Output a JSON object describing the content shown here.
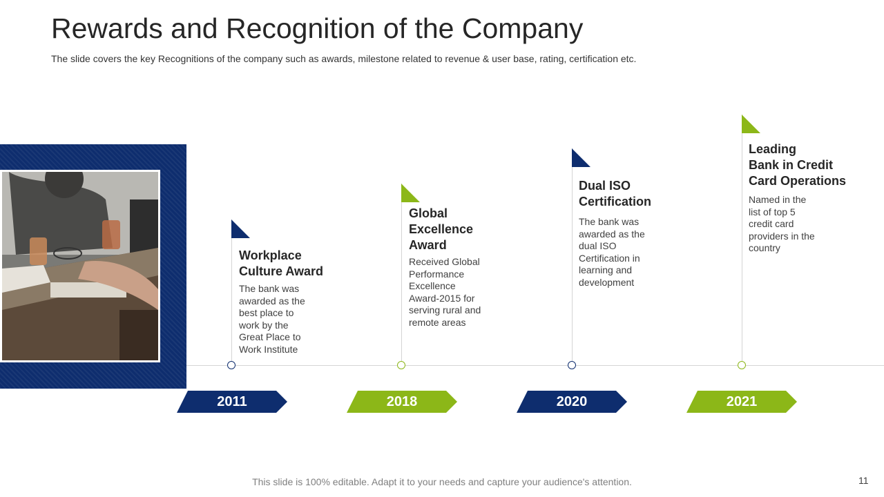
{
  "header": {
    "title": "Rewards and Recognition of the Company",
    "subtitle": "The slide covers the key Recognitions of the company such as awards, milestone related to revenue & user base, rating, certification etc."
  },
  "colors": {
    "blue": "#0e2d6e",
    "green": "#8cb718"
  },
  "photo": {
    "icon": "meeting-photo"
  },
  "timeline": [
    {
      "year": "2011",
      "title": "Workplace\nCulture Award",
      "description": "The bank was\nawarded as the\nbest place to\nwork by the\nGreat Place to\nWork Institute",
      "color": "blue"
    },
    {
      "year": "2018",
      "title": "Global\nExcellence\nAward",
      "description": "Received Global\nPerformance\nExcellence\nAward-2015 for\nserving rural and\nremote areas",
      "color": "green"
    },
    {
      "year": "2020",
      "title": "Dual ISO\nCertification",
      "description": "The bank was\nawarded as the\ndual ISO\nCertification in\nlearning and\ndevelopment",
      "color": "blue"
    },
    {
      "year": "2021",
      "title": "Leading\nBank in Credit\nCard Operations",
      "description": "Named in the\nlist of top 5\ncredit card\nproviders in the\ncountry",
      "color": "green"
    }
  ],
  "footer": {
    "text": "This slide is 100% editable. Adapt it to your needs and capture your audience's attention.",
    "page_number": "11"
  }
}
